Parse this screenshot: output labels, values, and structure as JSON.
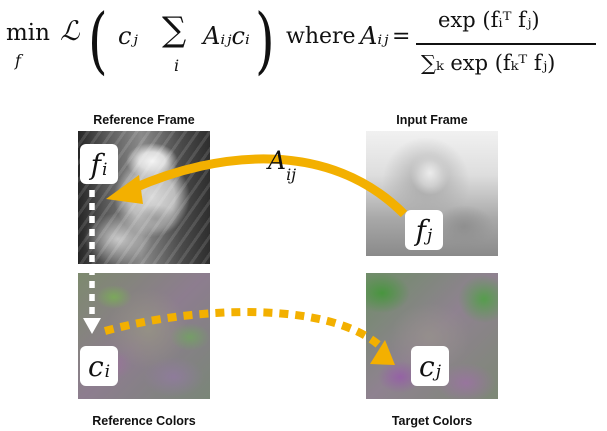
{
  "equation": {
    "min_word": "min",
    "min_under": "f",
    "loss_symbol": "ℒ",
    "c_j": "cⱼ",
    "sum_symbol": "∑",
    "sum_under": "i",
    "A_ij_term": "Aᵢⱼcᵢ",
    "where_word": "where",
    "A_ij": "Aᵢⱼ",
    "equals": "=",
    "numerator": "exp (fᵢᵀ fⱼ)",
    "denominator": "∑ₖ exp (fₖᵀ fⱼ)"
  },
  "panels": {
    "reference_frame_label": "Reference Frame",
    "input_frame_label": "Input Frame",
    "reference_colors_label": "Reference Colors",
    "target_colors_label": "Target Colors"
  },
  "boxes": {
    "fi_main": "f",
    "fi_sub": "i",
    "fj_main": "f",
    "fj_sub": "j",
    "ci_main": "c",
    "ci_sub": "i",
    "cj_main": "c",
    "cj_sub": "j"
  },
  "arrow_label": {
    "main": "A",
    "sub": "ij"
  },
  "colors": {
    "arrow": "#f3b000",
    "dashed_white": "#ffffff",
    "text": "#111111"
  }
}
